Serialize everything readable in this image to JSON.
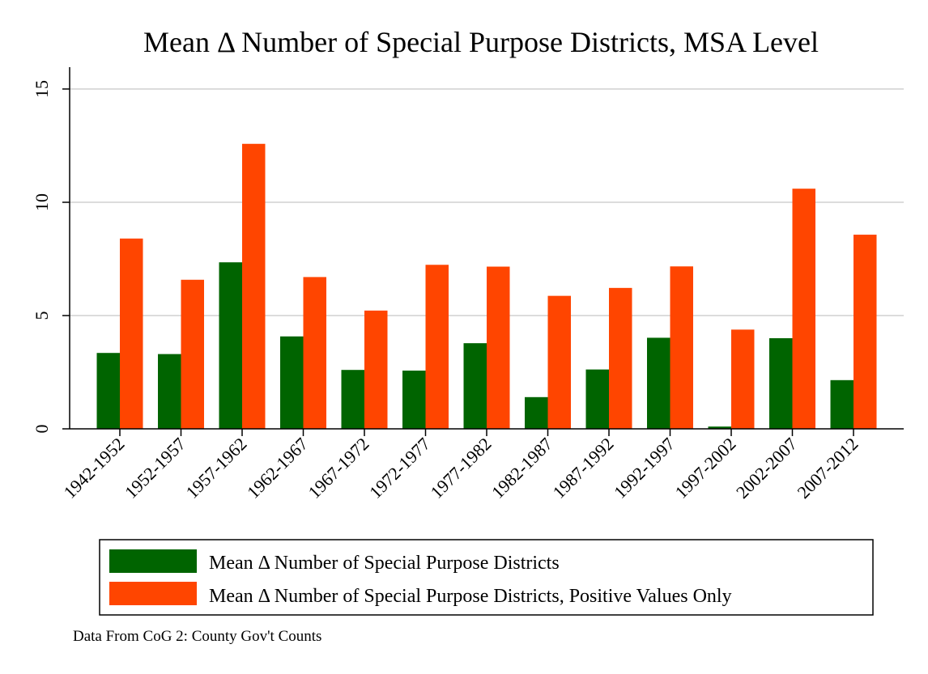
{
  "chart_data": {
    "type": "bar",
    "title": "Mean Δ Number of Special Purpose Districts, MSA Level",
    "xlabel": "",
    "ylabel": "",
    "categories": [
      "1942-1952",
      "1952-1957",
      "1957-1962",
      "1962-1967",
      "1967-1972",
      "1972-1977",
      "1977-1982",
      "1982-1987",
      "1987-1992",
      "1992-1997",
      "1997-2002",
      "2002-2007",
      "2007-2012"
    ],
    "series": [
      {
        "name": "Mean Δ Number of Special Purpose Districts",
        "color": "#006400",
        "values": [
          3.35,
          3.3,
          7.35,
          4.08,
          2.6,
          2.57,
          3.78,
          1.4,
          2.62,
          4.02,
          0.1,
          4.0,
          2.15
        ]
      },
      {
        "name": "Mean Δ Number of Special Purpose Districts, Positive Values Only",
        "color": "#ff4500",
        "values": [
          8.4,
          6.58,
          12.58,
          6.7,
          5.22,
          7.24,
          7.16,
          5.87,
          6.22,
          7.17,
          4.38,
          10.6,
          8.57
        ]
      }
    ],
    "ylim": [
      0,
      15
    ],
    "yticks": [
      0,
      5,
      10,
      15
    ],
    "grid": true,
    "legend_position": "bottom",
    "note": "Data From CoG 2: County Gov't Counts"
  }
}
